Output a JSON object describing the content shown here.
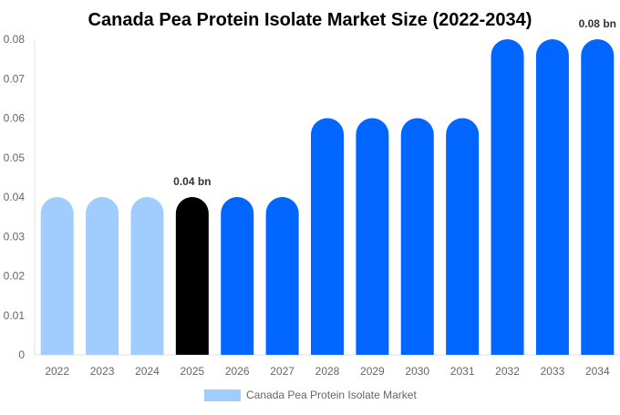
{
  "chart_data": {
    "type": "bar",
    "title": "Canada Pea Protein Isolate Market Size (2022-2034)",
    "xlabel": "",
    "ylabel": "",
    "ylim": [
      0,
      0.08
    ],
    "yticks": [
      "0",
      "0.01",
      "0.02",
      "0.03",
      "0.04",
      "0.05",
      "0.06",
      "0.07",
      "0.08"
    ],
    "categories": [
      "2022",
      "2023",
      "2024",
      "2025",
      "2026",
      "2027",
      "2028",
      "2029",
      "2030",
      "2031",
      "2032",
      "2033",
      "2034"
    ],
    "series": [
      {
        "name": "Canada Pea Protein Isolate Market",
        "values": [
          0.04,
          0.04,
          0.04,
          0.04,
          0.04,
          0.04,
          0.06,
          0.06,
          0.06,
          0.06,
          0.08,
          0.08,
          0.08
        ]
      }
    ],
    "bar_colors": [
      "#a0cdfd",
      "#a0cdfd",
      "#a0cdfd",
      "#000000",
      "#0066ff",
      "#0066ff",
      "#0066ff",
      "#0066ff",
      "#0066ff",
      "#0066ff",
      "#0066ff",
      "#0066ff",
      "#0066ff"
    ],
    "data_labels": [
      {
        "category": "2025",
        "text": "0.04 bn"
      },
      {
        "category": "2034",
        "text": "0.08 bn"
      }
    ],
    "legend": {
      "position": "bottom",
      "color": "#a0cdfd"
    },
    "grid": false
  }
}
